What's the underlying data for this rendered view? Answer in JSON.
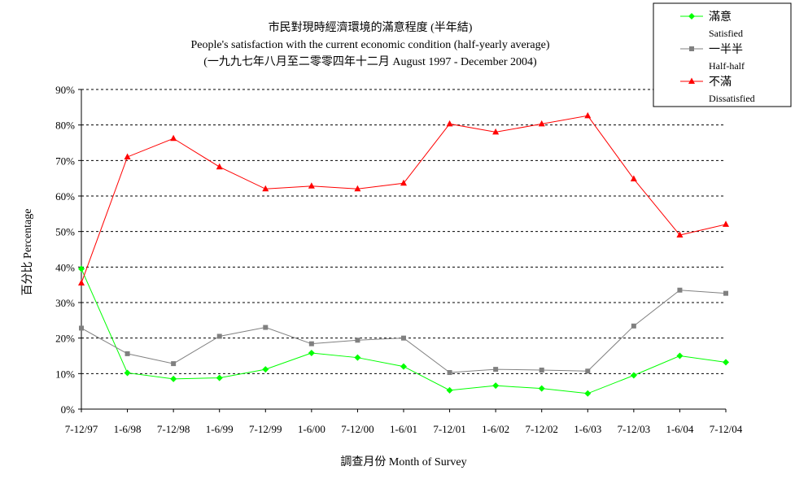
{
  "chart_data": {
    "type": "line",
    "title": "市民對現時經濟環境的滿意程度 (半年結)",
    "subtitle": "People's satisfaction with the current economic condition (half-yearly average)",
    "subtitle2": "(一九九七年八月至二零零四年十二月 August 1997 - December 2004)",
    "xlabel": "調查月份 Month of Survey",
    "ylabel": "百分比 Percentage",
    "categories": [
      "7-12/97",
      "1-6/98",
      "7-12/98",
      "1-6/99",
      "7-12/99",
      "1-6/00",
      "7-12/00",
      "1-6/01",
      "7-12/01",
      "1-6/02",
      "7-12/02",
      "1-6/03",
      "7-12/03",
      "1-6/04",
      "7-12/04"
    ],
    "ylim": [
      0,
      90
    ],
    "yticks": [
      "0%",
      "10%",
      "20%",
      "30%",
      "40%",
      "50%",
      "60%",
      "70%",
      "80%",
      "90%"
    ],
    "grid": "horizontal dashed",
    "legend_position": "top-right",
    "series": [
      {
        "name": "滿意",
        "name_en": "Satisfied",
        "color": "#00ff00",
        "marker": "diamond",
        "values": [
          39.5,
          10.2,
          8.5,
          8.8,
          11.2,
          15.8,
          14.5,
          12.0,
          5.3,
          6.6,
          5.8,
          4.4,
          9.5,
          15.0,
          13.2
        ]
      },
      {
        "name": "一半半",
        "name_en": "Half-half",
        "color": "#808080",
        "marker": "square",
        "values": [
          22.8,
          15.6,
          12.8,
          20.5,
          23.0,
          18.4,
          19.4,
          20.0,
          10.3,
          11.2,
          11.0,
          10.7,
          23.4,
          33.5,
          32.6
        ]
      },
      {
        "name": "不滿",
        "name_en": "Dissatisfied",
        "color": "#ff0000",
        "marker": "triangle",
        "values": [
          35.5,
          71.0,
          76.2,
          68.2,
          62.0,
          62.8,
          62.0,
          63.6,
          80.3,
          78.0,
          80.3,
          82.6,
          64.8,
          49.0,
          52.0
        ]
      }
    ]
  }
}
